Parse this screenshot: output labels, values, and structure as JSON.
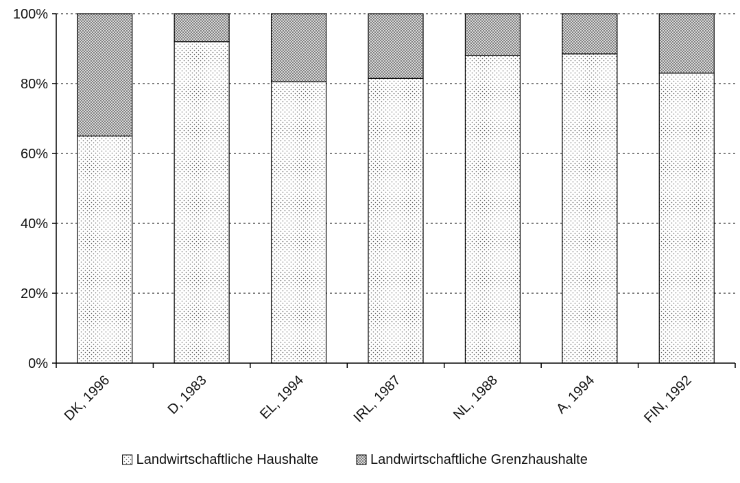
{
  "chart_data": {
    "type": "bar",
    "stacked": true,
    "percent": true,
    "categories": [
      "DK, 1996",
      "D, 1983",
      "EL, 1994",
      "IRL, 1987",
      "NL, 1988",
      "A, 1994",
      "FIN, 1992"
    ],
    "series": [
      {
        "name": "Landwirtschaftliche Haushalte",
        "values": [
          65,
          92,
          80.5,
          81.5,
          88,
          88.5,
          83
        ]
      },
      {
        "name": "Landwirtschaftliche Grenzhaushalte",
        "values": [
          35,
          8,
          19.5,
          18.5,
          12,
          11.5,
          17
        ]
      }
    ],
    "y_ticks": [
      "0%",
      "20%",
      "40%",
      "60%",
      "80%",
      "100%"
    ],
    "ylim": [
      0,
      100
    ],
    "grid": true,
    "legend_position": "bottom",
    "colors": {
      "series1": "#f2f2f2",
      "series2": "#cfcfcf",
      "axis": "#000000"
    }
  }
}
